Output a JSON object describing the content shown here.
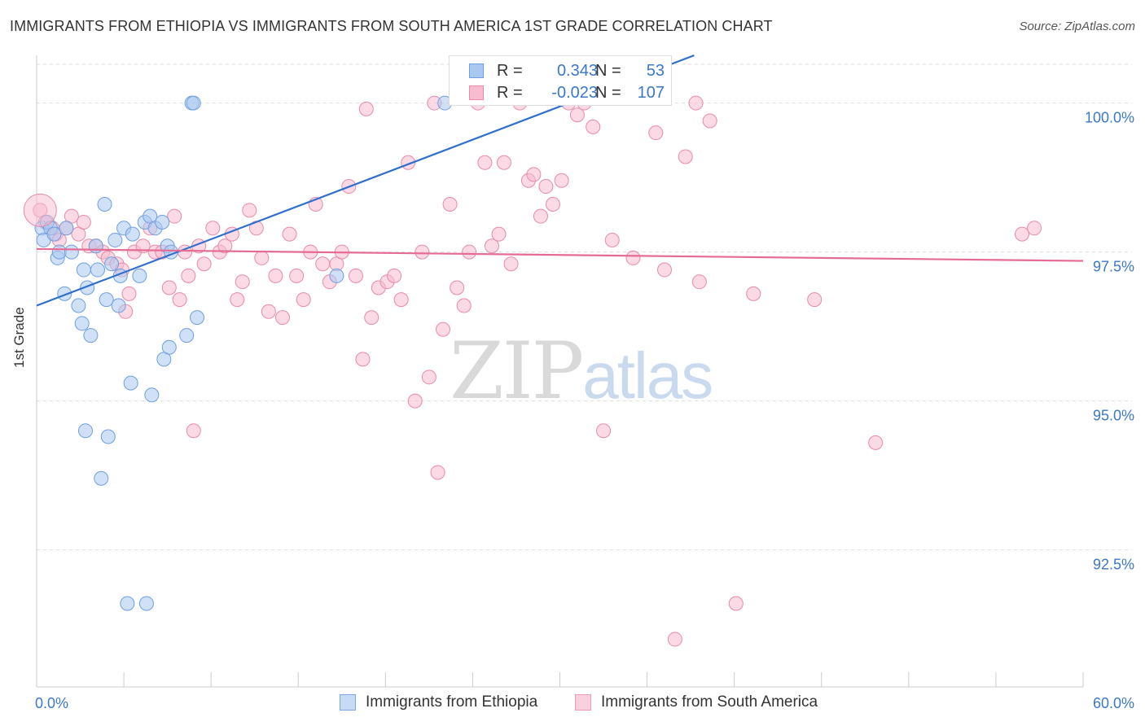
{
  "header": {
    "title": "IMMIGRANTS FROM ETHIOPIA VS IMMIGRANTS FROM SOUTH AMERICA 1ST GRADE CORRELATION CHART",
    "source": "Source: ZipAtlas.com"
  },
  "watermark": {
    "zip": "ZIP",
    "atlas": "atlas"
  },
  "legend": {
    "rows": [
      {
        "r_label": "R =",
        "r_value": "0.343",
        "n_label": "N =",
        "n_value": "53",
        "color": "#a9c8f0",
        "border": "#6f9fe0"
      },
      {
        "r_label": "R =",
        "r_value": "-0.023",
        "n_label": "N =",
        "n_value": "107",
        "color": "#f8bcd0",
        "border": "#e88aaa"
      }
    ]
  },
  "bottom_legend": {
    "ethiopia": "Immigrants from Ethiopia",
    "south_america": "Immigrants from South America"
  },
  "colors": {
    "ethiopia_fill": "#a9c8f0",
    "ethiopia_stroke": "#6f9fe0",
    "ethiopia_line": "#2f6fcc",
    "sa_fill": "#f8bcd0",
    "sa_stroke": "#e88aaa",
    "sa_line": "#e56b95",
    "tick_label": "#3b78c9",
    "grid": "#dddddd"
  },
  "chart_data": {
    "type": "scatter",
    "title": "IMMIGRANTS FROM ETHIOPIA VS IMMIGRANTS FROM SOUTH AMERICA 1ST GRADE CORRELATION CHART",
    "xlabel": "",
    "ylabel": "1st Grade",
    "xlim": [
      0,
      60
    ],
    "ylim": [
      90.2,
      100.8
    ],
    "x_tick_labels": [
      "0.0%",
      "60.0%"
    ],
    "y_ticks": [
      92.5,
      95.0,
      97.5,
      100.0
    ],
    "y_tick_labels": [
      "92.5%",
      "95.0%",
      "97.5%",
      "100.0%"
    ],
    "series": [
      {
        "name": "Immigrants from Ethiopia",
        "trend": {
          "x": [
            0,
            37.7
          ],
          "y": [
            96.6,
            100.8
          ]
        },
        "points": [
          [
            0.3,
            97.9
          ],
          [
            0.4,
            97.7
          ],
          [
            0.6,
            98.0
          ],
          [
            0.8,
            97.9
          ],
          [
            1.0,
            97.8
          ],
          [
            1.2,
            97.4
          ],
          [
            1.3,
            97.5
          ],
          [
            1.6,
            96.8
          ],
          [
            1.7,
            97.9
          ],
          [
            2.0,
            97.5
          ],
          [
            2.4,
            96.6
          ],
          [
            2.6,
            96.3
          ],
          [
            2.8,
            94.5
          ],
          [
            2.7,
            97.2
          ],
          [
            2.9,
            96.9
          ],
          [
            3.1,
            96.1
          ],
          [
            3.4,
            97.6
          ],
          [
            3.5,
            97.2
          ],
          [
            3.7,
            93.7
          ],
          [
            3.9,
            98.3
          ],
          [
            4.0,
            96.7
          ],
          [
            4.1,
            94.4
          ],
          [
            4.3,
            97.3
          ],
          [
            4.5,
            97.7
          ],
          [
            4.7,
            96.6
          ],
          [
            4.8,
            97.1
          ],
          [
            5.0,
            97.9
          ],
          [
            5.2,
            91.6
          ],
          [
            5.4,
            95.3
          ],
          [
            5.5,
            97.8
          ],
          [
            5.9,
            97.1
          ],
          [
            6.2,
            98.0
          ],
          [
            6.3,
            91.6
          ],
          [
            6.5,
            98.1
          ],
          [
            6.6,
            95.1
          ],
          [
            6.8,
            97.9
          ],
          [
            7.2,
            98.0
          ],
          [
            7.3,
            95.7
          ],
          [
            7.5,
            97.6
          ],
          [
            7.6,
            95.9
          ],
          [
            7.7,
            97.5
          ],
          [
            8.6,
            96.1
          ],
          [
            8.9,
            100.0
          ],
          [
            9.0,
            100.0
          ],
          [
            9.2,
            96.4
          ],
          [
            17.2,
            97.1
          ],
          [
            23.4,
            100.0
          ]
        ]
      },
      {
        "name": "Immigrants from South America",
        "trend": {
          "x": [
            0,
            60
          ],
          "y": [
            97.55,
            97.35
          ]
        },
        "points": [
          [
            0.2,
            98.2
          ],
          [
            0.5,
            98.0
          ],
          [
            0.9,
            97.9
          ],
          [
            1.1,
            97.8
          ],
          [
            1.3,
            97.7
          ],
          [
            1.7,
            97.9
          ],
          [
            2.0,
            98.1
          ],
          [
            2.4,
            97.8
          ],
          [
            2.7,
            98.0
          ],
          [
            3.0,
            97.6
          ],
          [
            3.4,
            97.6
          ],
          [
            3.8,
            97.5
          ],
          [
            4.1,
            97.4
          ],
          [
            4.6,
            97.3
          ],
          [
            4.9,
            97.2
          ],
          [
            5.1,
            96.5
          ],
          [
            5.3,
            96.8
          ],
          [
            5.6,
            97.5
          ],
          [
            6.1,
            97.6
          ],
          [
            6.5,
            97.9
          ],
          [
            6.8,
            97.5
          ],
          [
            7.2,
            97.5
          ],
          [
            7.6,
            96.9
          ],
          [
            7.9,
            98.1
          ],
          [
            8.2,
            96.7
          ],
          [
            8.5,
            97.5
          ],
          [
            8.7,
            97.1
          ],
          [
            9.0,
            94.5
          ],
          [
            9.3,
            97.6
          ],
          [
            9.6,
            97.3
          ],
          [
            10.1,
            97.9
          ],
          [
            10.5,
            97.5
          ],
          [
            10.8,
            97.6
          ],
          [
            11.2,
            97.8
          ],
          [
            11.5,
            96.7
          ],
          [
            11.8,
            97.0
          ],
          [
            12.2,
            98.2
          ],
          [
            12.6,
            97.9
          ],
          [
            12.9,
            97.4
          ],
          [
            13.3,
            96.5
          ],
          [
            13.7,
            97.1
          ],
          [
            14.1,
            96.4
          ],
          [
            14.5,
            97.8
          ],
          [
            14.9,
            97.1
          ],
          [
            15.3,
            96.7
          ],
          [
            15.7,
            97.5
          ],
          [
            16.0,
            98.3
          ],
          [
            16.4,
            97.3
          ],
          [
            16.8,
            97.0
          ],
          [
            17.2,
            97.3
          ],
          [
            17.5,
            97.5
          ],
          [
            17.9,
            98.6
          ],
          [
            18.3,
            97.1
          ],
          [
            18.7,
            95.7
          ],
          [
            18.9,
            99.9
          ],
          [
            19.2,
            96.4
          ],
          [
            19.6,
            96.9
          ],
          [
            20.1,
            97.0
          ],
          [
            20.5,
            97.1
          ],
          [
            20.9,
            96.7
          ],
          [
            21.3,
            99.0
          ],
          [
            21.7,
            95.0
          ],
          [
            22.1,
            97.5
          ],
          [
            22.5,
            95.4
          ],
          [
            22.8,
            100.0
          ],
          [
            23.0,
            93.8
          ],
          [
            23.3,
            96.2
          ],
          [
            23.7,
            98.3
          ],
          [
            24.1,
            96.9
          ],
          [
            24.5,
            96.6
          ],
          [
            24.8,
            97.5
          ],
          [
            25.3,
            100.0
          ],
          [
            25.7,
            99.0
          ],
          [
            26.1,
            97.6
          ],
          [
            26.5,
            97.8
          ],
          [
            26.8,
            99.0
          ],
          [
            27.2,
            97.3
          ],
          [
            27.7,
            100.0
          ],
          [
            28.2,
            98.7
          ],
          [
            28.5,
            98.8
          ],
          [
            28.9,
            98.1
          ],
          [
            29.2,
            98.6
          ],
          [
            29.6,
            98.3
          ],
          [
            30.1,
            98.7
          ],
          [
            30.5,
            100.0
          ],
          [
            31.0,
            99.8
          ],
          [
            31.4,
            100.0
          ],
          [
            31.9,
            99.6
          ],
          [
            35.5,
            99.5
          ],
          [
            36.6,
            91.0
          ],
          [
            37.2,
            99.1
          ],
          [
            37.8,
            100.0
          ],
          [
            38.6,
            99.7
          ],
          [
            40.1,
            91.6
          ],
          [
            41.1,
            96.8
          ],
          [
            44.6,
            96.7
          ],
          [
            48.1,
            94.3
          ],
          [
            56.5,
            97.8
          ],
          [
            57.2,
            97.9
          ],
          [
            33.0,
            97.7
          ],
          [
            34.2,
            97.4
          ],
          [
            32.5,
            94.5
          ],
          [
            36.0,
            97.2
          ],
          [
            38.0,
            97.0
          ]
        ]
      }
    ]
  }
}
